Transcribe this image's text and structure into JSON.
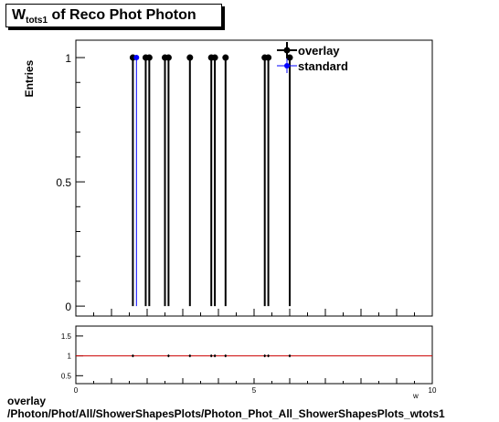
{
  "title": {
    "main": "W",
    "sub": "tots1",
    "rest": " of Reco Phot Photon"
  },
  "footer": {
    "line1": "overlay",
    "line2": "/Photon/Phot/All/ShowerShapesPlots/Photon_Phot_All_ShowerShapesPlots_wtots1"
  },
  "chart_data": [
    {
      "type": "scatter",
      "ylabel": "Entries",
      "xlabel": "w",
      "xlim": [
        0,
        10
      ],
      "ylim": [
        -0.04,
        1.07
      ],
      "yticks": [
        0,
        0.5,
        1
      ],
      "ytick_labels": [
        "0",
        "0.5",
        "1"
      ],
      "legend": {
        "placement": "top-right",
        "entries": [
          "overlay",
          "standard"
        ]
      },
      "colors": {
        "overlay": "#000000",
        "standard": "#0000ff"
      },
      "series": [
        {
          "name": "overlay",
          "x": [
            1.6,
            1.96,
            2.06,
            2.5,
            2.6,
            3.2,
            3.8,
            3.9,
            4.2,
            5.3,
            5.4,
            6.0
          ],
          "y": [
            1,
            1,
            1,
            1,
            1,
            1,
            1,
            1,
            1,
            1,
            1,
            1
          ]
        },
        {
          "name": "standard",
          "x": [
            1.7
          ],
          "y": [
            1
          ]
        }
      ]
    },
    {
      "type": "scatter",
      "xlim": [
        0,
        10
      ],
      "ylim": [
        0.3,
        1.75
      ],
      "xticks": [
        0,
        5,
        10
      ],
      "xtick_labels": [
        "0",
        "5",
        "10"
      ],
      "yticks": [
        0.5,
        1,
        1.5
      ],
      "ytick_labels": [
        "0.5",
        "1",
        "1.5"
      ],
      "reference_line": 1,
      "colors": {
        "reference": "#cc0000",
        "points": "#000000"
      },
      "series": [
        {
          "x": [
            1.6,
            2.6,
            3.2,
            3.8,
            3.9,
            4.2,
            5.3,
            5.4,
            6.0
          ],
          "y": [
            1,
            1,
            1,
            1,
            1,
            1,
            1,
            1,
            1
          ]
        }
      ]
    }
  ]
}
